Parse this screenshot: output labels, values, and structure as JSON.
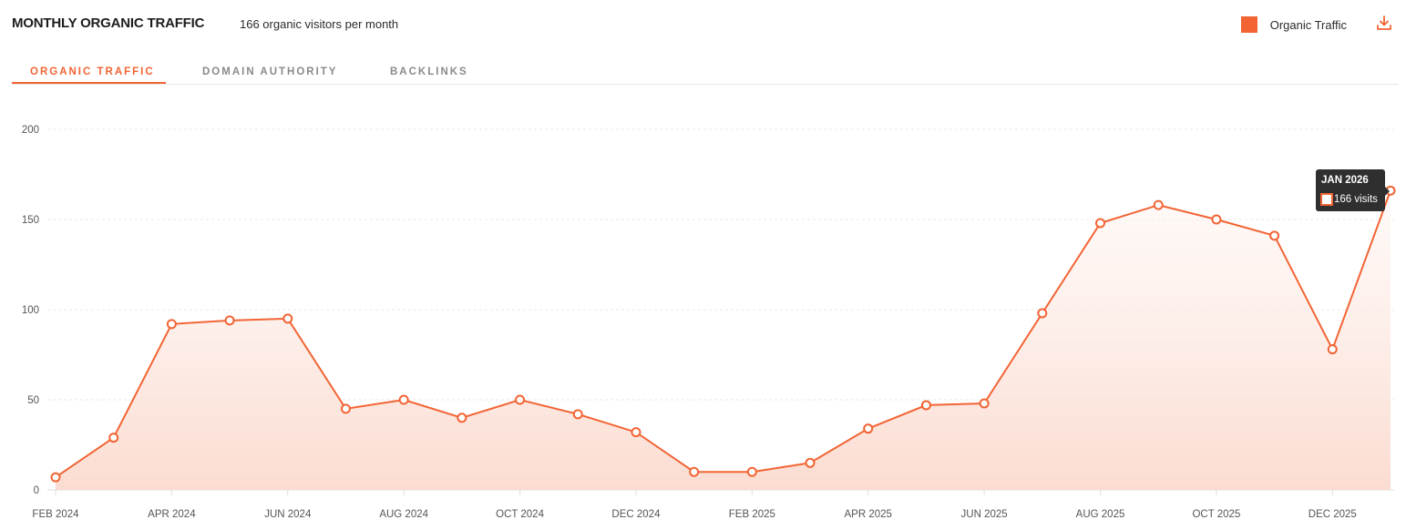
{
  "header": {
    "title": "MONTHLY ORGANIC TRAFFIC",
    "subtitle": "166 organic visitors per month",
    "legend_label": "Organic Traffic",
    "download_icon": "download-icon"
  },
  "tabs": [
    {
      "label": "ORGANIC TRAFFIC",
      "active": true
    },
    {
      "label": "DOMAIN AUTHORITY",
      "active": false
    },
    {
      "label": "BACKLINKS",
      "active": false
    }
  ],
  "colors": {
    "accent": "#f26434",
    "fill_top": "#fdf3ef",
    "fill_bottom": "#fbded4",
    "grid": "#e6e6e6",
    "tooltip_bg": "#2f2f2f"
  },
  "tooltip": {
    "title": "JAN 2026",
    "value_label": "166 visits"
  },
  "chart_data": {
    "type": "area",
    "title": "MONTHLY ORGANIC TRAFFIC",
    "xlabel": "",
    "ylabel": "",
    "ylim": [
      0,
      200
    ],
    "yticks": [
      0,
      50,
      100,
      150,
      200
    ],
    "grid": true,
    "legend_position": "top-right",
    "x": [
      "FEB 2024",
      "MAR 2024",
      "APR 2024",
      "MAY 2024",
      "JUN 2024",
      "JUL 2024",
      "AUG 2024",
      "SEP 2024",
      "OCT 2024",
      "NOV 2024",
      "DEC 2024",
      "JAN 2025",
      "FEB 2025",
      "MAR 2025",
      "APR 2025",
      "MAY 2025",
      "JUN 2025",
      "JUL 2025",
      "AUG 2025",
      "SEP 2025",
      "OCT 2025",
      "NOV 2025",
      "DEC 2025",
      "JAN 2026"
    ],
    "xtick_labels": [
      "FEB 2024",
      "APR 2024",
      "JUN 2024",
      "AUG 2024",
      "OCT 2024",
      "DEC 2024",
      "FEB 2025",
      "APR 2025",
      "JUN 2025",
      "AUG 2025",
      "OCT 2025",
      "DEC 2025"
    ],
    "series": [
      {
        "name": "Organic Traffic",
        "values": [
          7,
          29,
          92,
          94,
          95,
          45,
          50,
          40,
          50,
          42,
          32,
          10,
          10,
          15,
          34,
          47,
          48,
          98,
          148,
          158,
          150,
          141,
          78,
          166
        ]
      }
    ]
  }
}
